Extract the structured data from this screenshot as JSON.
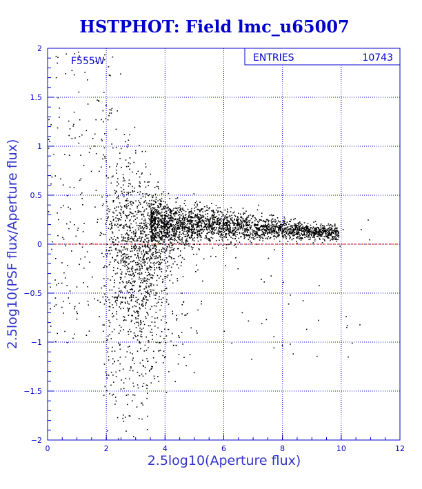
{
  "chart_data": {
    "type": "scatter",
    "title": "HSTPHOT: Field lmc_u65007",
    "xlabel": "2.5log10(Aperture flux)",
    "ylabel": "2.5log10(PSF flux/Aperture flux)",
    "xlim": [
      0,
      12
    ],
    "ylim": [
      -2,
      2
    ],
    "x_ticks": [
      "0",
      "2",
      "4",
      "6",
      "8",
      "10",
      "12"
    ],
    "y_ticks": [
      "-2",
      "-1.5",
      "-1",
      "-0.5",
      "0",
      "0.5",
      "1",
      "1.5",
      "2"
    ],
    "filter_label": "F555W",
    "stats": {
      "entries_label": "ENTRIES",
      "entries_value": "10743"
    },
    "reference_line": {
      "y": 0,
      "color": "#cc0000"
    },
    "grid": true,
    "colors": {
      "axes": "#0000cc",
      "points": "#000000",
      "title": "#0000cc"
    },
    "point_model": {
      "count_drawn": 4000,
      "ridge": {
        "x_range": [
          3.5,
          9.9
        ],
        "y_center_at_x4": 0.22,
        "y_center_at_x10": 0.12
      },
      "scatter_region": {
        "x_range": [
          1.8,
          4.2
        ],
        "y_range": [
          -2,
          0.7
        ]
      },
      "sparse_region": {
        "x_range": [
          0,
          2
        ],
        "y_range": [
          -1,
          2
        ]
      }
    }
  }
}
